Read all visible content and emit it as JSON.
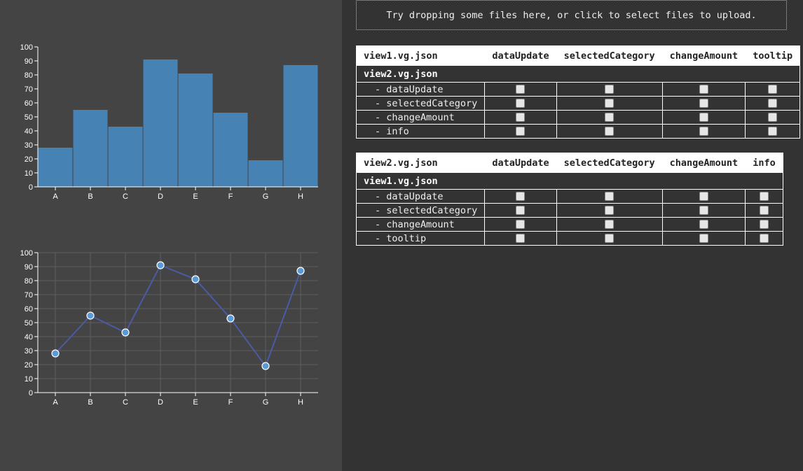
{
  "dropzone": {
    "text": "Try dropping some files here, or click to select files to upload."
  },
  "chart_data": [
    {
      "type": "bar",
      "categories": [
        "A",
        "B",
        "C",
        "D",
        "E",
        "F",
        "G",
        "H"
      ],
      "values": [
        28,
        55,
        43,
        91,
        81,
        53,
        19,
        87
      ],
      "ylim": [
        0,
        100
      ],
      "yticks": [
        0,
        10,
        20,
        30,
        40,
        50,
        60,
        70,
        80,
        90,
        100
      ],
      "grid": false,
      "color": "#4682b4"
    },
    {
      "type": "line",
      "categories": [
        "A",
        "B",
        "C",
        "D",
        "E",
        "F",
        "G",
        "H"
      ],
      "values": [
        28,
        55,
        43,
        91,
        81,
        53,
        19,
        87
      ],
      "ylim": [
        0,
        100
      ],
      "yticks": [
        0,
        10,
        20,
        30,
        40,
        50,
        60,
        70,
        80,
        90,
        100
      ],
      "grid": true,
      "line_color": "#4c5aa6",
      "point_color": "#5b9bd5"
    }
  ],
  "tables": [
    {
      "header": [
        "view1.vg.json",
        "dataUpdate",
        "selectedCategory",
        "changeAmount",
        "tooltip"
      ],
      "group": "view2.vg.json",
      "rows": [
        "- dataUpdate",
        "- selectedCategory",
        "- changeAmount",
        "- info"
      ]
    },
    {
      "header": [
        "view2.vg.json",
        "dataUpdate",
        "selectedCategory",
        "changeAmount",
        "info"
      ],
      "group": "view1.vg.json",
      "rows": [
        "- dataUpdate",
        "- selectedCategory",
        "- changeAmount",
        "- tooltip"
      ]
    }
  ]
}
